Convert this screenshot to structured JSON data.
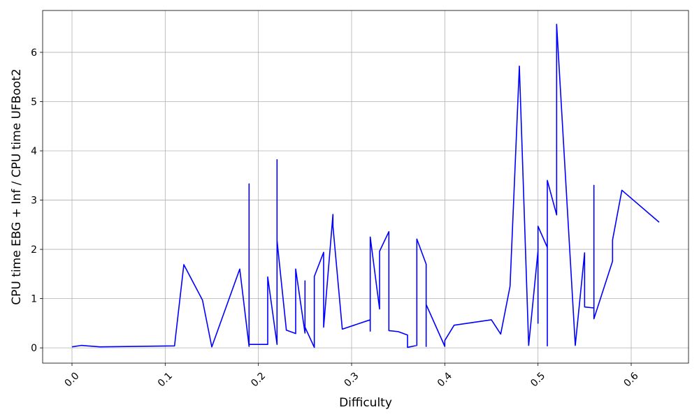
{
  "chart_data": {
    "type": "line",
    "title": "",
    "xlabel": "Difficulty",
    "ylabel": "CPU time EBG + Inf / CPU time UFBoot2",
    "xlim": [
      -0.0315,
      0.6615
    ],
    "ylim": [
      -0.31,
      6.85
    ],
    "xticks": [
      0.0,
      0.1,
      0.2,
      0.3,
      0.4,
      0.5,
      0.6
    ],
    "xtick_labels": [
      "0.0",
      "0.1",
      "0.2",
      "0.3",
      "0.4",
      "0.5",
      "0.6"
    ],
    "yticks": [
      0,
      1,
      2,
      3,
      4,
      5,
      6
    ],
    "ytick_labels": [
      "0",
      "1",
      "2",
      "3",
      "4",
      "5",
      "6"
    ],
    "grid": true,
    "legend": "none",
    "series_color": "#0000ff",
    "series": [
      {
        "x": [
          0.0,
          0.01,
          0.03,
          0.11,
          0.12,
          0.14,
          0.15,
          0.18,
          0.19,
          0.19,
          0.19,
          0.21,
          0.21,
          0.22,
          0.22,
          0.22,
          0.23,
          0.24,
          0.24,
          0.25,
          0.25,
          0.25,
          0.26,
          0.26,
          0.27,
          0.27,
          0.28,
          0.28,
          0.29,
          0.32,
          0.32,
          0.32,
          0.33,
          0.33,
          0.34,
          0.34,
          0.35,
          0.36,
          0.36,
          0.37,
          0.37,
          0.38,
          0.38,
          0.38,
          0.38,
          0.4,
          0.4,
          0.41,
          0.45,
          0.46,
          0.47,
          0.48,
          0.49,
          0.5,
          0.5,
          0.5,
          0.51,
          0.51,
          0.51,
          0.52,
          0.52,
          0.54,
          0.55,
          0.55,
          0.56,
          0.56,
          0.56,
          0.58,
          0.58,
          0.59,
          0.63
        ],
        "y": [
          0.02,
          0.05,
          0.02,
          0.04,
          1.69,
          0.97,
          0.02,
          1.6,
          0.03,
          3.33,
          0.07,
          0.07,
          1.44,
          0.07,
          3.82,
          2.18,
          0.36,
          0.29,
          1.6,
          0.3,
          1.36,
          0.42,
          0.01,
          1.45,
          1.94,
          0.42,
          2.71,
          2.47,
          0.38,
          0.57,
          0.34,
          2.25,
          0.79,
          1.96,
          2.36,
          0.35,
          0.33,
          0.26,
          0.01,
          0.05,
          2.21,
          1.7,
          0.03,
          1.55,
          0.88,
          0.03,
          0.15,
          0.46,
          0.57,
          0.28,
          1.25,
          5.72,
          0.05,
          1.97,
          0.5,
          2.47,
          2.04,
          0.04,
          3.4,
          2.7,
          6.57,
          0.05,
          1.93,
          0.83,
          0.81,
          3.3,
          0.59,
          1.76,
          2.19,
          3.2,
          2.55
        ]
      }
    ]
  }
}
